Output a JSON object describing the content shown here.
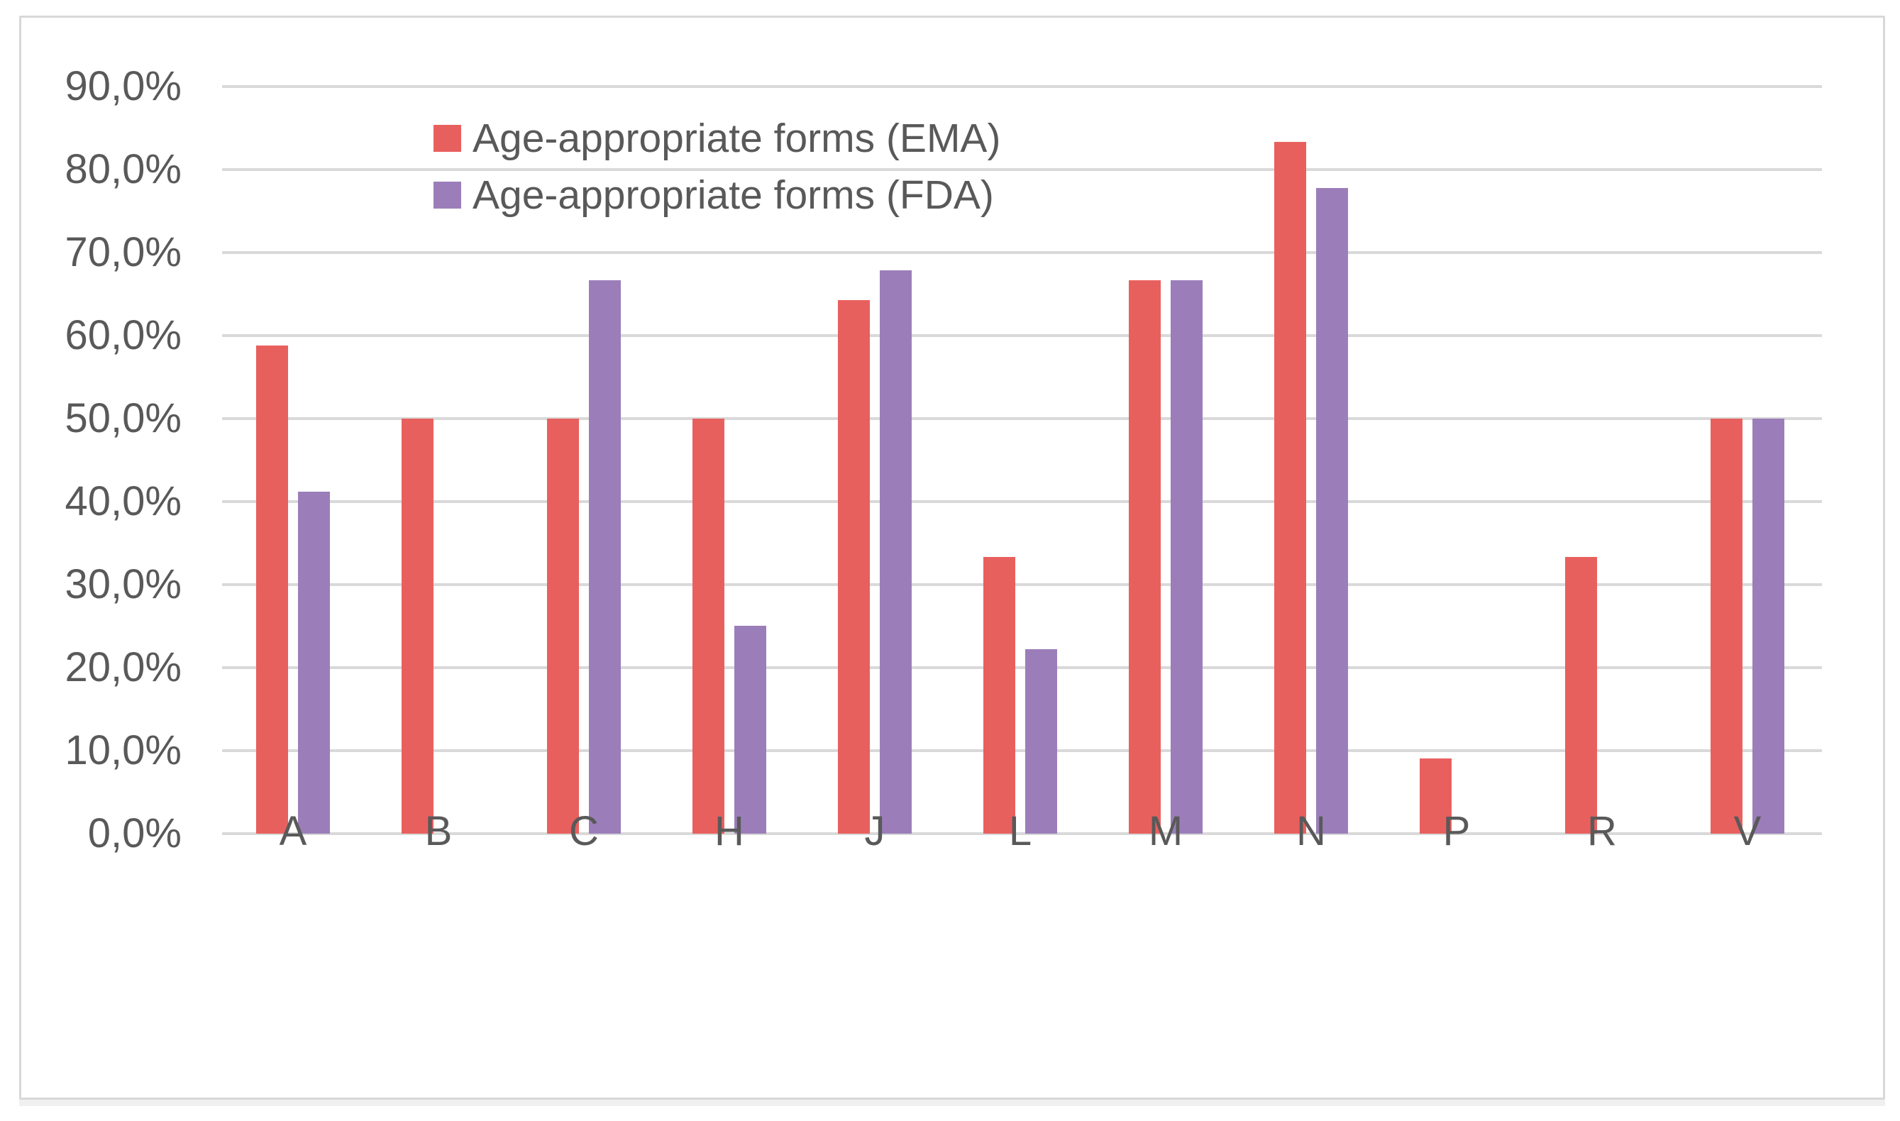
{
  "chart_data": {
    "type": "bar",
    "title": "",
    "xlabel": "",
    "ylabel": "",
    "categories": [
      "A",
      "B",
      "C",
      "H",
      "J",
      "L",
      "M",
      "N",
      "P",
      "R",
      "V"
    ],
    "series": [
      {
        "name": "Age-appropriate forms (EMA)",
        "color": "#E8605E",
        "values": [
          58.8,
          50.0,
          50.0,
          50.0,
          64.3,
          33.3,
          66.7,
          83.3,
          9.1,
          33.3,
          50.0
        ]
      },
      {
        "name": "Age-appropriate forms (FDA)",
        "color": "#9B7EB9",
        "values": [
          41.2,
          0.0,
          66.7,
          25.0,
          67.9,
          22.2,
          66.7,
          77.8,
          0.0,
          0.0,
          50.0
        ]
      }
    ],
    "ylim": [
      0,
      90
    ],
    "y_tick_step": 10,
    "y_tick_labels_desc": [
      "90,0%",
      "80,0%",
      "70,0%",
      "60,0%",
      "50,0%",
      "40,0%",
      "30,0%",
      "20,0%",
      "10,0%",
      "0,0%"
    ],
    "grid": true,
    "gridline_color": "#D9D9D9",
    "legend_position": "top-left-inside",
    "decimal_separator": ","
  },
  "legend": {
    "items": [
      {
        "label": "Age-appropriate forms (EMA)",
        "color": "#E8605E"
      },
      {
        "label": "Age-appropriate forms (FDA)",
        "color": "#9B7EB9"
      }
    ]
  },
  "colors": {
    "background": "#FFFFFF",
    "canvas_border": "#D8D8D8",
    "text": "#595959",
    "ema_bar": "#E8605E",
    "fda_bar": "#9B7EB9",
    "gridline": "#D9D9D9"
  }
}
